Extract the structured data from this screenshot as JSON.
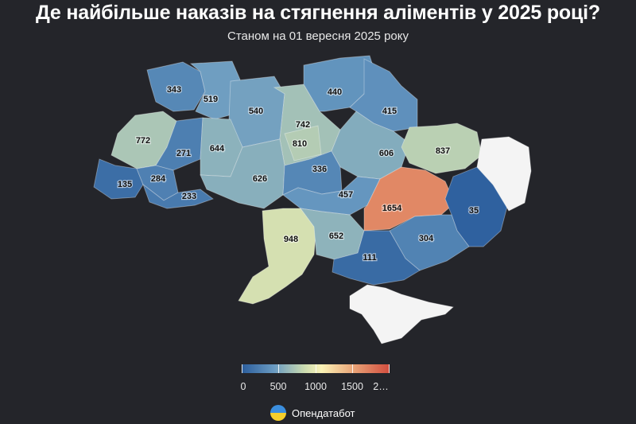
{
  "title": "Де найбільше наказів на стягнення аліментів у 2025 році?",
  "subtitle": "Станом на 01 вересня 2025 року",
  "legend": {
    "ticks": [
      "0",
      "500",
      "1000",
      "1500",
      "2…"
    ],
    "colors": [
      "#2b5d9c",
      "#6a9bc2",
      "#c9dab0",
      "#fbf3b6",
      "#e8a276",
      "#d24d3e"
    ]
  },
  "brand": "Опендатабот",
  "map": {
    "no_data_color": "#f4f4f4",
    "regions": [
      {
        "id": "volyn",
        "value": "343"
      },
      {
        "id": "rivne",
        "value": "519"
      },
      {
        "id": "zhytomyr",
        "value": "540"
      },
      {
        "id": "kyiv-oblast",
        "value": "742"
      },
      {
        "id": "chernihiv",
        "value": "440"
      },
      {
        "id": "sumy",
        "value": "415"
      },
      {
        "id": "lviv",
        "value": "772"
      },
      {
        "id": "ternopil",
        "value": "271"
      },
      {
        "id": "khmelnytskyi",
        "value": "644"
      },
      {
        "id": "kyiv-city",
        "value": "810"
      },
      {
        "id": "poltava",
        "value": "606"
      },
      {
        "id": "kharkiv",
        "value": "837"
      },
      {
        "id": "zakarpattia",
        "value": "135"
      },
      {
        "id": "ivano-frankivsk",
        "value": "284"
      },
      {
        "id": "chernivtsi",
        "value": "233"
      },
      {
        "id": "vinnytsia",
        "value": "626"
      },
      {
        "id": "cherkasy",
        "value": "336"
      },
      {
        "id": "kirovohrad",
        "value": "457"
      },
      {
        "id": "dnipropetrovsk",
        "value": "1654"
      },
      {
        "id": "donetsk",
        "value": "35"
      },
      {
        "id": "odesa",
        "value": "948"
      },
      {
        "id": "mykolaiv",
        "value": "652"
      },
      {
        "id": "zaporizhzhia",
        "value": "304"
      },
      {
        "id": "kherson",
        "value": "111"
      },
      {
        "id": "luhansk",
        "value": ""
      },
      {
        "id": "crimea",
        "value": ""
      }
    ]
  }
}
